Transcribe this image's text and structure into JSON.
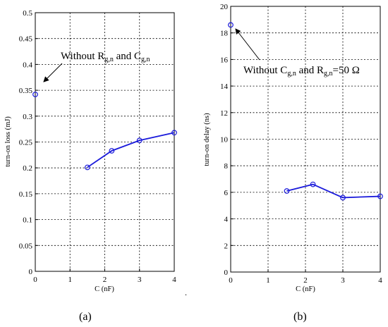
{
  "chart_data": [
    {
      "type": "line",
      "panel_label": "(a)",
      "xlabel": "C (nF)",
      "ylabel": "turn-on loss (mJ)",
      "xlim": [
        0,
        4
      ],
      "ylim": [
        0,
        0.5
      ],
      "xticks": [
        "0",
        "0.5",
        "1",
        "1.5",
        "2",
        "2.5",
        "3",
        "3.5",
        "4"
      ],
      "xtick_values": [
        0,
        1,
        2,
        3,
        4
      ],
      "xtick_labels": [
        "0",
        "1",
        "2",
        "3",
        "4"
      ],
      "ytick_values": [
        0,
        0.05,
        0.1,
        0.15,
        0.2,
        0.25,
        0.3,
        0.35,
        0.4,
        0.45,
        0.5
      ],
      "ytick_labels": [
        "0",
        "0.05",
        "0.1",
        "0.15",
        "0.2",
        "0.25",
        "0.3",
        "0.35",
        "0.4",
        "0.45",
        "0.5"
      ],
      "grid": true,
      "color": "#1a1adb",
      "series": [
        {
          "x": [
            1.5,
            2.2,
            3.0,
            4.0
          ],
          "y": [
            0.201,
            0.233,
            0.253,
            0.268
          ]
        }
      ],
      "reference_point": {
        "x": 0,
        "y": 0.342
      },
      "annotation": {
        "parts": [
          "Without R",
          "g,n",
          " and C",
          "g,n"
        ]
      }
    },
    {
      "type": "line",
      "panel_label": "(b)",
      "xlabel": "C (nF)",
      "ylabel": "turn-on delay (ns)",
      "xlim": [
        0,
        4
      ],
      "ylim": [
        0,
        20
      ],
      "xtick_values": [
        0,
        1,
        2,
        3,
        4
      ],
      "xtick_labels": [
        "0",
        "1",
        "2",
        "3",
        "4"
      ],
      "ytick_values": [
        0,
        2,
        4,
        6,
        8,
        10,
        12,
        14,
        16,
        18,
        20
      ],
      "ytick_labels": [
        "0",
        "2",
        "4",
        "6",
        "8",
        "10",
        "12",
        "14",
        "16",
        "18",
        "20"
      ],
      "grid": true,
      "color": "#1a1adb",
      "series": [
        {
          "x": [
            1.5,
            2.2,
            3.0,
            4.0
          ],
          "y": [
            6.1,
            6.6,
            5.6,
            5.7
          ]
        }
      ],
      "reference_point": {
        "x": 0,
        "y": 18.6
      },
      "annotation": {
        "parts": [
          "Without C",
          "g,n",
          " and R",
          "g,n",
          "=50 Ω"
        ]
      }
    }
  ],
  "stray_mark": "."
}
